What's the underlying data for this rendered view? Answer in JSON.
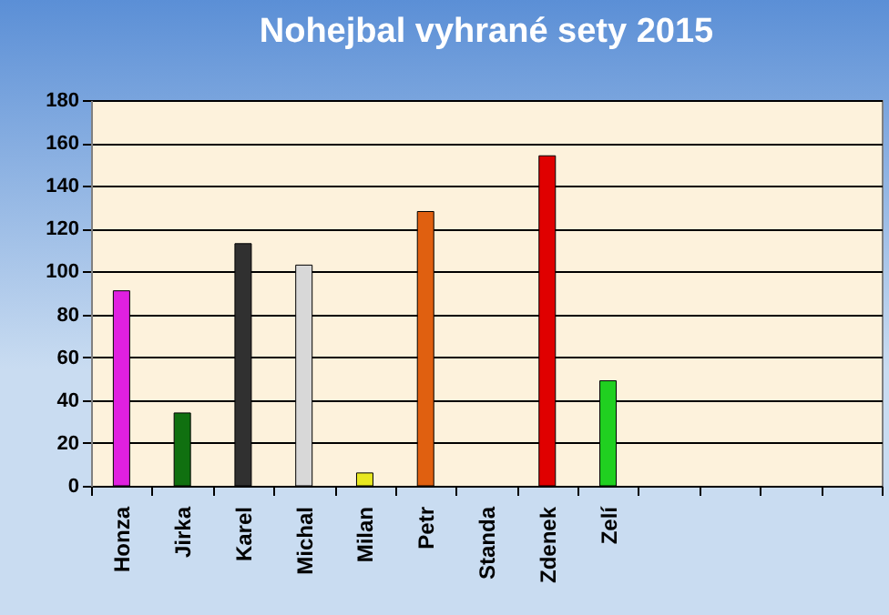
{
  "chart_data": {
    "type": "bar",
    "title": "Nohejbal vyhrané sety 2015",
    "categories": [
      "Honza",
      "Jirka",
      "Karel",
      "Michal",
      "Milan",
      "Petr",
      "Standa",
      "Zdenek",
      "Zelí",
      null,
      null,
      null,
      null
    ],
    "values": [
      91,
      34,
      113,
      103,
      6,
      128,
      null,
      154,
      49,
      null,
      null,
      null,
      null
    ],
    "colors": [
      "#e020e0",
      "#107010",
      "#303030",
      "#d8d8d8",
      "#e8e820",
      "#e06010",
      "#808080",
      "#e00000",
      "#20d020",
      "#808080",
      "#808080",
      "#808080",
      "#808080"
    ],
    "ylim": [
      0,
      180
    ],
    "yticks": [
      0,
      20,
      40,
      60,
      80,
      100,
      120,
      140,
      160,
      180
    ],
    "grid": "y"
  }
}
